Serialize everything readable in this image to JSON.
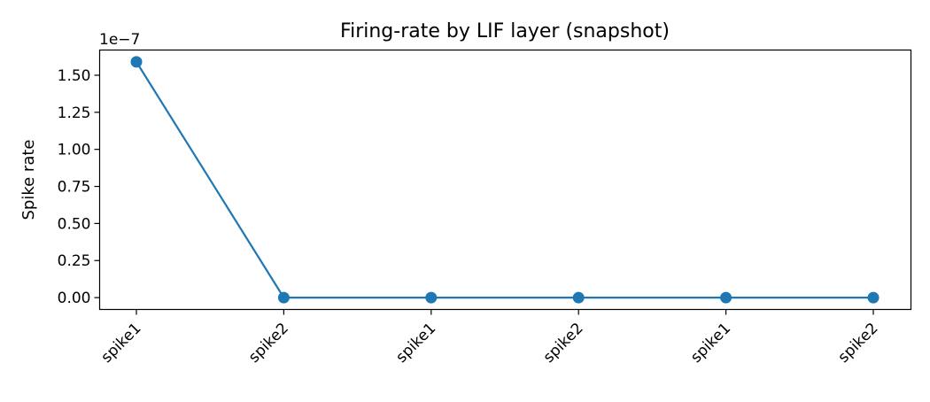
{
  "chart_data": {
    "type": "line",
    "title": "Firing-rate by LIF layer (snapshot)",
    "xlabel": "",
    "ylabel": "Spike rate",
    "y_offset_label": "1e−7",
    "categories": [
      "spike1",
      "spike2",
      "spike1",
      "spike2",
      "spike1",
      "spike2"
    ],
    "series": [
      {
        "values": [
          1.59e-07,
          0,
          0,
          0,
          0,
          0
        ],
        "color": "#1f77b4"
      }
    ],
    "ylim": [
      -8e-09,
      1.67e-07
    ],
    "y_ticks": [
      0,
      2.5e-08,
      5e-08,
      7.5e-08,
      1e-07,
      1.25e-07,
      1.5e-07
    ],
    "y_tick_labels": [
      "0.00",
      "0.25",
      "0.50",
      "0.75",
      "1.00",
      "1.25",
      "1.50"
    ],
    "grid": false,
    "legend": "none",
    "marker": "circle"
  }
}
